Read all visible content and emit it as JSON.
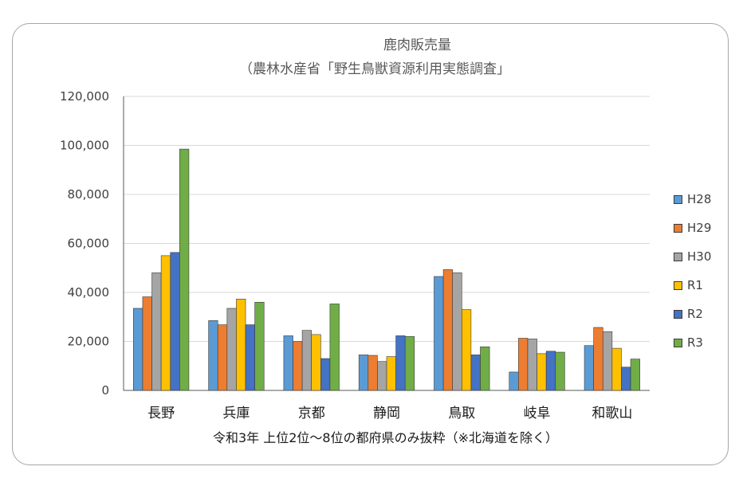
{
  "chart_data": {
    "type": "bar",
    "title": "鹿肉販売量",
    "subtitle": "（農林水産省「野生鳥獣資源利用実態調査」",
    "footnote": "令和3年 上位2位〜8位の都府県のみ抜粋（※北海道を除く）",
    "categories": [
      "長野",
      "兵庫",
      "京都",
      "静岡",
      "鳥取",
      "岐阜",
      "和歌山"
    ],
    "ylim": [
      0,
      120000
    ],
    "yticks": [
      "0",
      "20,000",
      "40,000",
      "60,000",
      "80,000",
      "100,000",
      "120,000"
    ],
    "ytick_values": [
      0,
      20000,
      40000,
      60000,
      80000,
      100000,
      120000
    ],
    "grid": true,
    "legend_position": "right",
    "series": [
      {
        "name": "H28",
        "color": "#5b9bd5",
        "values": [
          33500,
          28500,
          22300,
          14500,
          46500,
          7500,
          18300
        ]
      },
      {
        "name": "H29",
        "color": "#ed7d31",
        "values": [
          38200,
          26800,
          20000,
          14300,
          49300,
          21300,
          25700
        ]
      },
      {
        "name": "H30",
        "color": "#a5a5a5",
        "values": [
          48000,
          33500,
          24500,
          11800,
          48000,
          21000,
          24000
        ]
      },
      {
        "name": "R1",
        "color": "#ffc000",
        "values": [
          55000,
          37300,
          22800,
          13800,
          33000,
          15000,
          17200
        ]
      },
      {
        "name": "R2",
        "color": "#4472c4",
        "values": [
          56300,
          26800,
          13000,
          22300,
          14500,
          16000,
          9500
        ]
      },
      {
        "name": "R3",
        "color": "#70ad47",
        "values": [
          98500,
          36000,
          35300,
          22000,
          17800,
          15600,
          12800
        ]
      }
    ]
  }
}
